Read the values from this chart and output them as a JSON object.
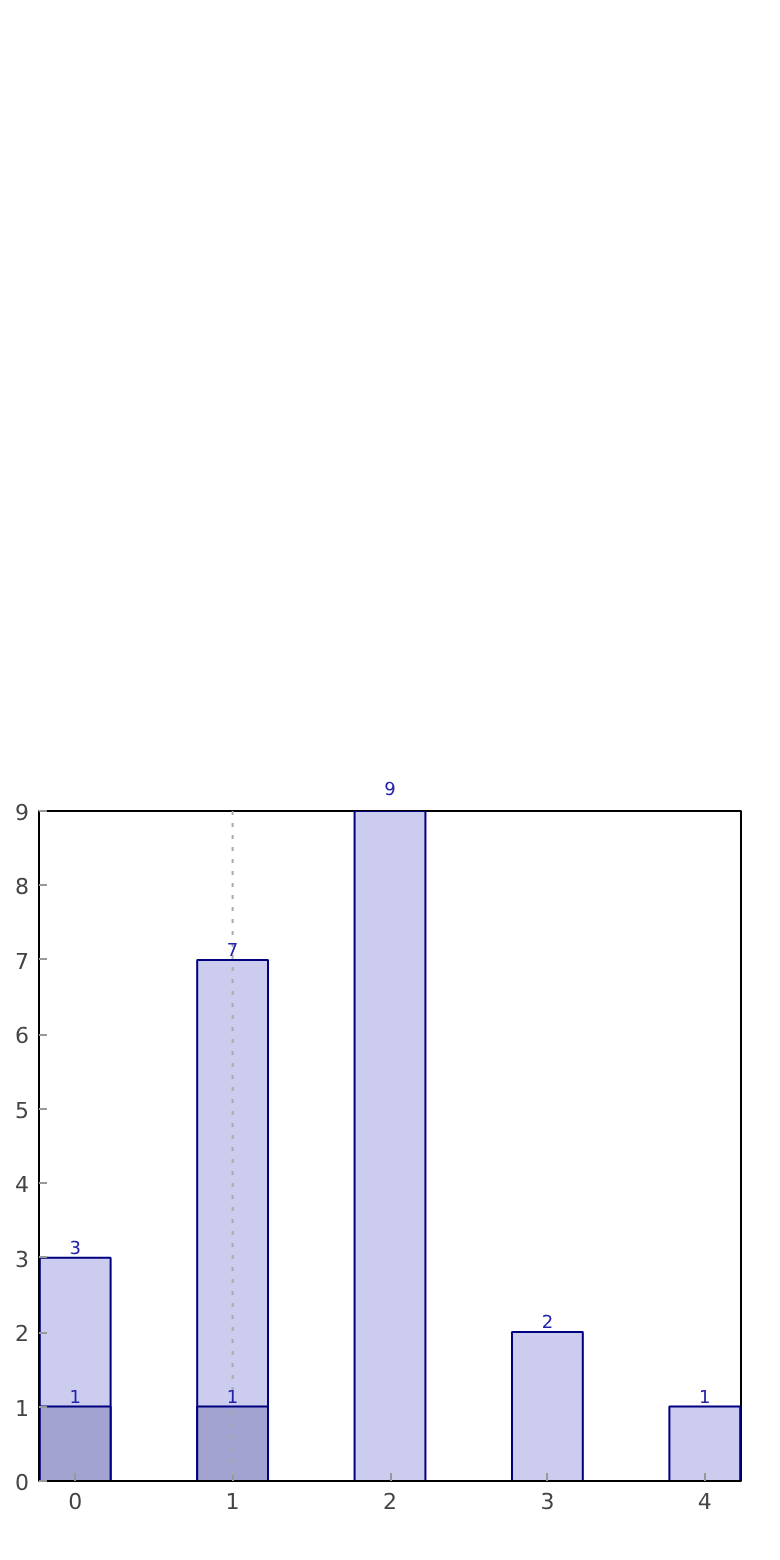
{
  "chart_data": {
    "type": "bar",
    "x": [
      0,
      1,
      2,
      3,
      4
    ],
    "series": [
      {
        "color": "#ccccee",
        "values": [
          3,
          7,
          9,
          2,
          1
        ]
      },
      {
        "color": "#a3a3d1",
        "values": [
          1,
          1,
          null,
          null,
          null
        ]
      }
    ],
    "xlim": [
      -0.23,
      4.23
    ],
    "xticks": [
      0,
      1,
      2,
      3,
      4
    ],
    "ylim": [
      0,
      9
    ],
    "yticks": [
      0,
      1,
      2,
      3,
      4,
      5,
      6,
      7,
      8,
      9
    ],
    "data_labels": true,
    "grid": false,
    "ref_lines": [
      {
        "axis": "x",
        "value": 1,
        "label": null,
        "color": "#aaaaaa",
        "line_style": "dotted"
      }
    ]
  }
}
